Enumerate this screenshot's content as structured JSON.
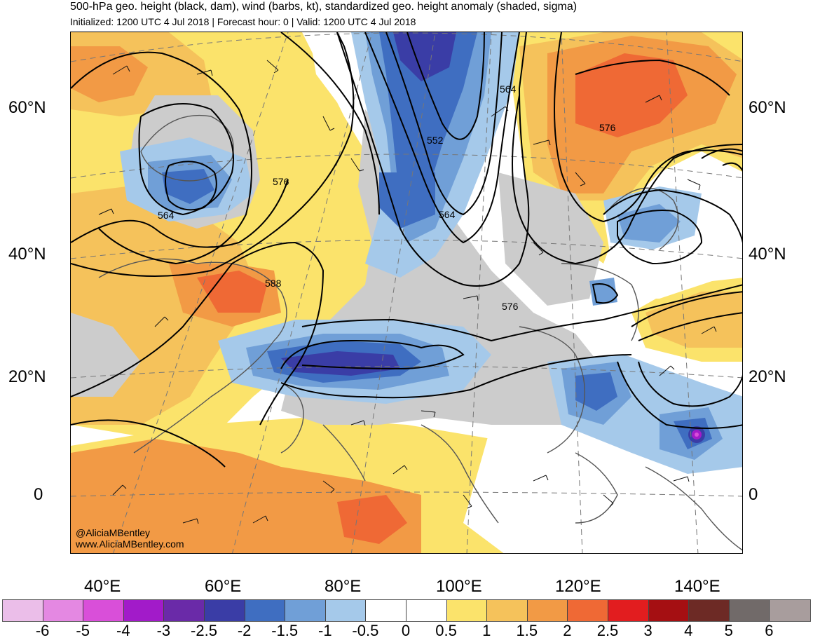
{
  "header": {
    "title": "500-hPa geo. height (black, dam), wind (barbs, kt), standardized geo. height anomaly (shaded, sigma)",
    "subtitle": "Initialized: 1200 UTC 4 Jul 2018 | Forecast hour: 0 | Valid: 1200 UTC 4 Jul 2018"
  },
  "axes": {
    "lat_left": [
      "60°N",
      "40°N",
      "20°N",
      "0"
    ],
    "lat_right": [
      "60°N",
      "40°N",
      "20°N",
      "0"
    ],
    "lon": [
      "40°E",
      "60°E",
      "80°E",
      "100°E",
      "120°E",
      "140°E"
    ]
  },
  "contour_labels": [
    "564",
    "576",
    "552",
    "564",
    "576",
    "564",
    "576",
    "588"
  ],
  "credits": [
    "@AliciaMBentley",
    "www.AliciaMBentley.com"
  ],
  "colorbar": {
    "colors": [
      "#ebbee9",
      "#e488e2",
      "#d94fd9",
      "#a21bc9",
      "#6a2aa8",
      "#3a3da6",
      "#3f6ec1",
      "#709fd7",
      "#a5c9ea",
      "#ffffff",
      "#ffffff",
      "#fbe36b",
      "#f5c25b",
      "#f29a45",
      "#ef6935",
      "#e21d1f",
      "#a50f12",
      "#6d2a25",
      "#716a69",
      "#a89d9d"
    ],
    "labels": [
      "-6",
      "-5",
      "-4",
      "-3",
      "-2.5",
      "-2",
      "-1.5",
      "-1",
      "-0.5",
      "0",
      "0.5",
      "1",
      "1.5",
      "2",
      "2.5",
      "3",
      "4",
      "5",
      "6"
    ]
  }
}
